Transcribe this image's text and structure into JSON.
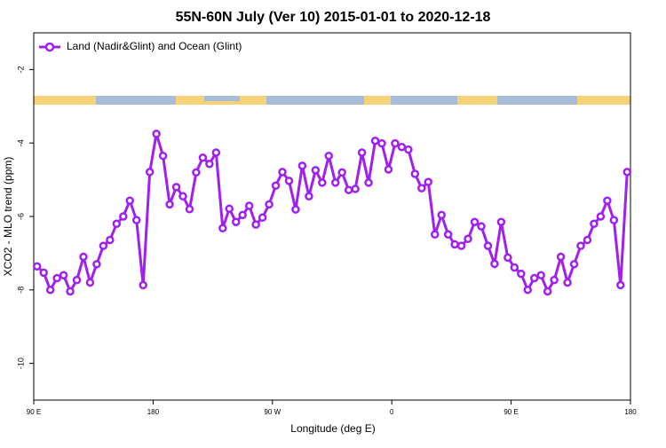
{
  "chart_data": {
    "type": "line",
    "title": "55N-60N July (Ver 10)   2015-01-01 to 2020-12-18",
    "x_label": "Longitude (deg E)",
    "y_label": "XCO2 - MLO trend (ppm)",
    "x": [
      92.5,
      97.5,
      102.5,
      107.5,
      112.5,
      117.5,
      122.5,
      127.5,
      132.5,
      137.5,
      142.5,
      147.5,
      152.5,
      157.5,
      162.5,
      167.5,
      172.5,
      177.5,
      182.5,
      187.5,
      192.5,
      197.5,
      202.5,
      207.5,
      212.5,
      217.5,
      222.5,
      227.5,
      232.5,
      237.5,
      242.5,
      247.5,
      252.5,
      257.5,
      262.5,
      267.5,
      272.5,
      277.5,
      282.5,
      287.5,
      292.5,
      297.5,
      302.5,
      307.5,
      312.5,
      317.5,
      322.5,
      327.5,
      332.5,
      337.5,
      342.5,
      347.5,
      352.5,
      357.5,
      362.5,
      367.5,
      372.5,
      377.5,
      382.5,
      387.5,
      392.5,
      397.5,
      402.5,
      407.5,
      412.5,
      417.5,
      422.5,
      427.5,
      432.5,
      437.5,
      442.5,
      447.5,
      452.5,
      457.5,
      462.5,
      467.5,
      472.5,
      477.5,
      482.5,
      487.5,
      492.5,
      497.5,
      502.5,
      507.5,
      512.5,
      517.5,
      522.5,
      527.5,
      532.5,
      537.5
    ],
    "series": [
      {
        "name": "Land (Nadir&Glint) and Ocean (Glint)",
        "color": "#a020f0",
        "values": [
          -7.36,
          -7.53,
          -8.0,
          -7.68,
          -7.6,
          -8.04,
          -7.73,
          -7.1,
          -7.8,
          -7.3,
          -6.8,
          -6.64,
          -6.2,
          -6.0,
          -5.57,
          -6.1,
          -7.87,
          -4.79,
          -3.75,
          -4.35,
          -5.67,
          -5.2,
          -5.45,
          -5.8,
          -4.8,
          -4.4,
          -4.57,
          -4.26,
          -6.32,
          -5.79,
          -6.15,
          -5.96,
          -5.71,
          -6.22,
          -6.03,
          -5.67,
          -5.16,
          -4.79,
          -5.03,
          -5.81,
          -4.62,
          -5.45,
          -4.74,
          -5.08,
          -4.35,
          -5.08,
          -4.8,
          -5.28,
          -5.25,
          -4.26,
          -5.08,
          -3.94,
          -4.01,
          -4.72,
          -4.01,
          -4.11,
          -4.18,
          -4.84,
          -5.23,
          -5.06,
          -6.49,
          -5.96,
          -6.49,
          -6.76,
          -6.8,
          -6.61,
          -6.15,
          -6.27,
          -6.8,
          -7.29,
          -6.15,
          -7.12,
          -7.39,
          -7.56,
          -8.0,
          -7.68,
          -7.6,
          -8.04,
          -7.73,
          -7.1,
          -7.8,
          -7.3,
          -6.8,
          -6.64,
          -6.2,
          -6.0,
          -5.57,
          -6.1,
          -7.87,
          -4.79
        ]
      }
    ],
    "xlim": [
      90,
      540
    ],
    "xticks": [
      {
        "value": 90,
        "label": "90 E"
      },
      180,
      {
        "value": 270,
        "label": "90 W"
      },
      {
        "value": 360,
        "label": "0"
      },
      {
        "value": 450,
        "label": "90 E"
      },
      {
        "value": 540,
        "label": "180"
      }
    ],
    "ylim": [
      -11,
      -1
    ],
    "yticks": [
      -10,
      -8,
      -6,
      -4,
      -2
    ],
    "legend": "top-left"
  }
}
